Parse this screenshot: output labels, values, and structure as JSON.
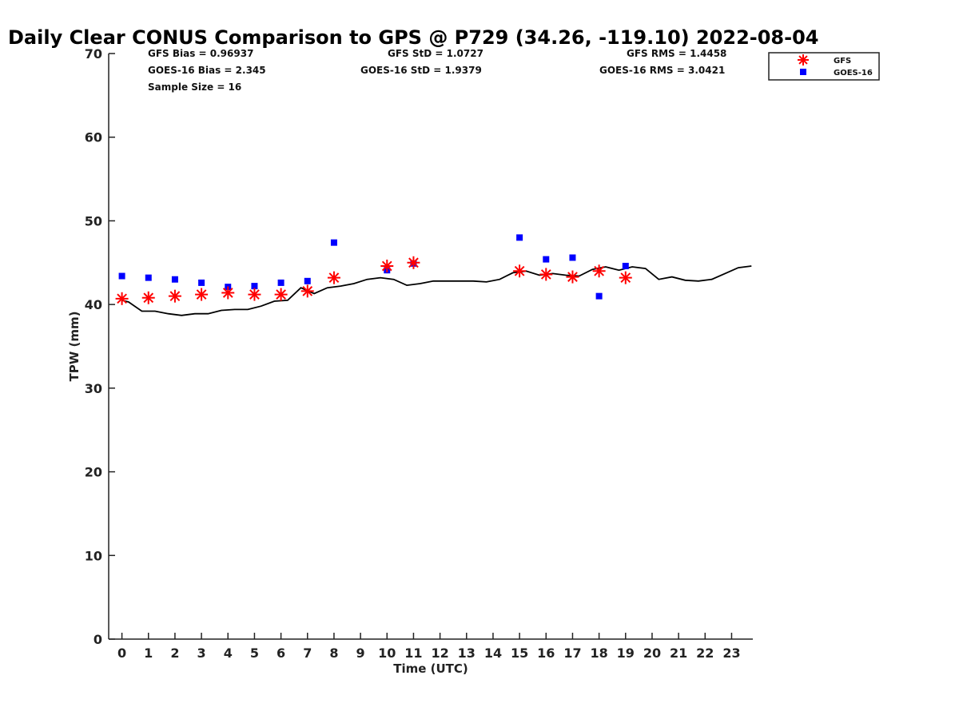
{
  "chart_data": {
    "type": "scatter",
    "title": "Daily Clear CONUS Comparison to GPS @ P729 (34.26, -119.10) 2022-08-04",
    "xlabel": "Time (UTC)",
    "ylabel": "TPW (mm)",
    "xlim": [
      -0.5,
      23.8
    ],
    "ylim": [
      0,
      70
    ],
    "x_ticks": [
      "0",
      "1",
      "2",
      "3",
      "4",
      "5",
      "6",
      "7",
      "8",
      "9",
      "10",
      "11",
      "12",
      "13",
      "14",
      "15",
      "16",
      "17",
      "18",
      "19",
      "20",
      "21",
      "22",
      "23"
    ],
    "y_ticks": [
      "0",
      "10",
      "20",
      "30",
      "40",
      "50",
      "60",
      "70"
    ],
    "grid": false,
    "legend_position": "top-right",
    "stats": {
      "gfs_bias": "GFS Bias = 0.96937",
      "goes_bias": "GOES-16 Bias = 2.345",
      "sample_size": "Sample Size = 16",
      "gfs_std": "GFS StD = 1.0727",
      "goes_std": "GOES-16 StD = 1.9379",
      "gfs_rms": "GFS RMS = 1.4458",
      "goes_rms": "GOES-16 RMS = 3.0421"
    },
    "series": [
      {
        "name": "GFS",
        "marker": "asterisk",
        "color": "#ff0000",
        "x": [
          0,
          1,
          2,
          3,
          4,
          5,
          6,
          7,
          8,
          10,
          11,
          15,
          16,
          17,
          18,
          19
        ],
        "y": [
          40.7,
          40.8,
          41.0,
          41.2,
          41.4,
          41.2,
          41.2,
          41.6,
          43.2,
          44.6,
          45.0,
          44.0,
          43.6,
          43.3,
          44.0,
          43.2
        ]
      },
      {
        "name": "GOES-16",
        "marker": "square",
        "color": "#0000ff",
        "x": [
          0,
          1,
          2,
          3,
          4,
          5,
          6,
          7,
          8,
          10,
          11,
          15,
          16,
          17,
          18,
          19
        ],
        "y": [
          43.4,
          43.2,
          43.0,
          42.6,
          42.1,
          42.2,
          42.6,
          42.8,
          47.4,
          44.1,
          44.9,
          48.0,
          45.4,
          45.6,
          41.0,
          44.6
        ]
      },
      {
        "name": "",
        "marker": "line",
        "color": "#000000",
        "x": [
          0,
          0.25,
          0.75,
          1.25,
          1.75,
          2.25,
          2.75,
          3.25,
          3.75,
          4.25,
          4.75,
          5.25,
          5.75,
          6.25,
          6.75,
          7.25,
          7.75,
          8.25,
          8.75,
          9.25,
          9.75,
          10.25,
          10.75,
          11.25,
          11.75,
          12.25,
          12.75,
          13.25,
          13.75,
          14.25,
          14.75,
          15.25,
          15.75,
          16.25,
          16.75,
          17.25,
          17.75,
          18.25,
          18.75,
          19.25,
          19.75,
          20.25,
          20.75,
          21.25,
          21.75,
          22.25,
          22.75,
          23.25,
          23.75
        ],
        "y": [
          40.5,
          40.3,
          39.2,
          39.2,
          38.9,
          38.7,
          38.9,
          38.9,
          39.3,
          39.4,
          39.4,
          39.8,
          40.4,
          40.5,
          42.0,
          41.3,
          42.0,
          42.2,
          42.5,
          43.0,
          43.2,
          43.0,
          42.3,
          42.5,
          42.8,
          42.8,
          42.8,
          42.8,
          42.7,
          43.0,
          43.8,
          44.0,
          43.5,
          43.7,
          43.5,
          43.4,
          44.2,
          44.5,
          44.1,
          44.5,
          44.3,
          43.0,
          43.3,
          42.9,
          42.8,
          43.0,
          43.7,
          44.4,
          44.6
        ]
      }
    ]
  }
}
